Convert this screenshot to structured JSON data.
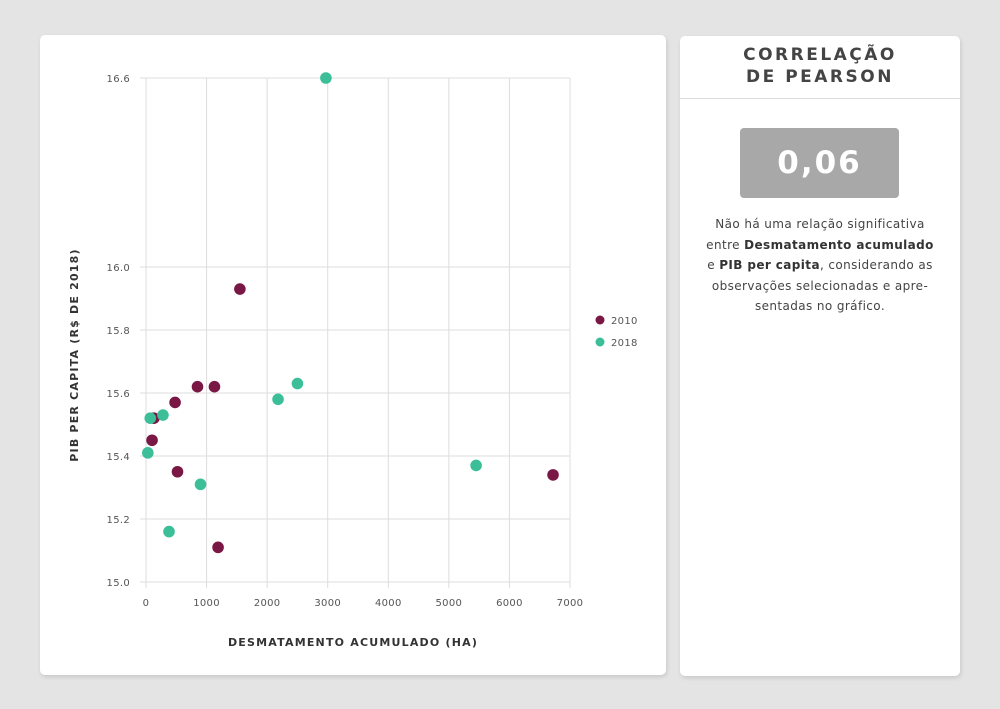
{
  "chart_data": {
    "type": "scatter",
    "xlabel": "DESMATAMENTO ACUMULADO (HA)",
    "ylabel": "PIB PER CAPITA (R$ DE 2018)",
    "xlim": [
      0,
      7000
    ],
    "ylim": [
      15.0,
      16.6
    ],
    "xticks": [
      0,
      1000,
      2000,
      3000,
      4000,
      5000,
      6000,
      7000
    ],
    "yticks": [
      15.0,
      15.2,
      15.4,
      15.6,
      15.8,
      16.0,
      16.6
    ],
    "ytick_labels": [
      "15.0",
      "15.2",
      "15.4",
      "15.6",
      "15.8",
      "16.0",
      "16.6"
    ],
    "grid": true,
    "legend_position": "right",
    "series": [
      {
        "name": "2010",
        "color": "#7a1845",
        "points": [
          {
            "x": 1550,
            "y": 15.93
          },
          {
            "x": 850,
            "y": 15.62
          },
          {
            "x": 1130,
            "y": 15.62
          },
          {
            "x": 480,
            "y": 15.57
          },
          {
            "x": 130,
            "y": 15.52
          },
          {
            "x": 100,
            "y": 15.45
          },
          {
            "x": 520,
            "y": 15.35
          },
          {
            "x": 1190,
            "y": 15.11
          },
          {
            "x": 6720,
            "y": 15.34
          }
        ]
      },
      {
        "name": "2018",
        "color": "#3cbf99",
        "points": [
          {
            "x": 2970,
            "y": 16.6
          },
          {
            "x": 2500,
            "y": 15.63
          },
          {
            "x": 2180,
            "y": 15.58
          },
          {
            "x": 280,
            "y": 15.53
          },
          {
            "x": 70,
            "y": 15.52
          },
          {
            "x": 30,
            "y": 15.41
          },
          {
            "x": 900,
            "y": 15.31
          },
          {
            "x": 380,
            "y": 15.16
          },
          {
            "x": 5450,
            "y": 15.37
          }
        ]
      }
    ]
  },
  "side": {
    "title_line1": "CORRELAÇÃO",
    "title_line2": "DE PEARSON",
    "value": "0,06",
    "desc_part1": "Não há uma relação significativa entre ",
    "desc_bold1": "Desmatamento acumulado",
    "desc_part2": " e ",
    "desc_bold2": "PIB per capita",
    "desc_part3": ", considerando as observações selecionadas e apre-sentadas no gráfico."
  }
}
